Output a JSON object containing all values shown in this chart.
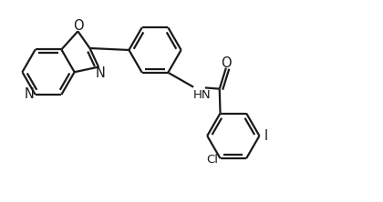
{
  "bg_color": "#ffffff",
  "bond_color": "#1a1a1a",
  "bond_width": 1.6,
  "font_size": 9.5,
  "fig_width": 4.2,
  "fig_height": 2.22,
  "dpi": 100,
  "xlim": [
    0,
    10.5
  ],
  "ylim": [
    0,
    5.5
  ]
}
